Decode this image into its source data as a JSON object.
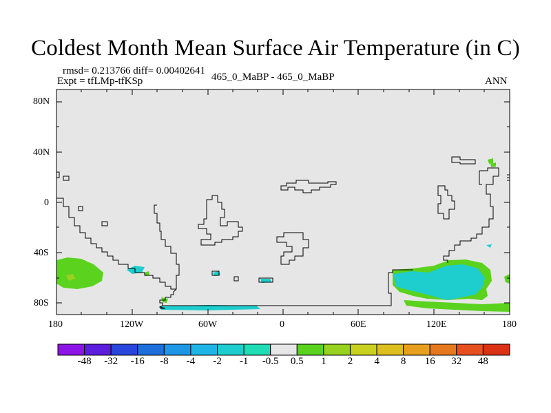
{
  "title": "Coldest Month Mean Surface Air Temperature (in C)",
  "stats_line": "rmsd= 0.213766 diff= 0.00402641",
  "expt_line": "Expt = tfLMp-tfKSp",
  "case_label": "465_0_MaBP - 465_0_MaBP",
  "season": "ANN",
  "lat_ticks": [
    "80N",
    "40N",
    "0",
    "40S",
    "80S"
  ],
  "lon_ticks": [
    "180",
    "120W",
    "60W",
    "0",
    "60E",
    "120E",
    "180"
  ],
  "colorbar": {
    "labels": [
      "-48",
      "-32",
      "-16",
      "-8",
      "-4",
      "-2",
      "-1",
      "-0.5",
      "0.5",
      "1",
      "2",
      "4",
      "8",
      "16",
      "32",
      "48"
    ],
    "colors": [
      "#8c14e6",
      "#5a1edc",
      "#2846dc",
      "#1e6edc",
      "#1e96e6",
      "#1eb4e6",
      "#1ecdcd",
      "#1edcb4",
      "#e6e6e6",
      "#5ad21e",
      "#96d21e",
      "#c8d21e",
      "#dcbe1e",
      "#e6a01e",
      "#e6781e",
      "#e6501e",
      "#dc3214"
    ]
  },
  "colors": {
    "background_field": "#e6e6e6",
    "coastline": "#000000"
  }
}
